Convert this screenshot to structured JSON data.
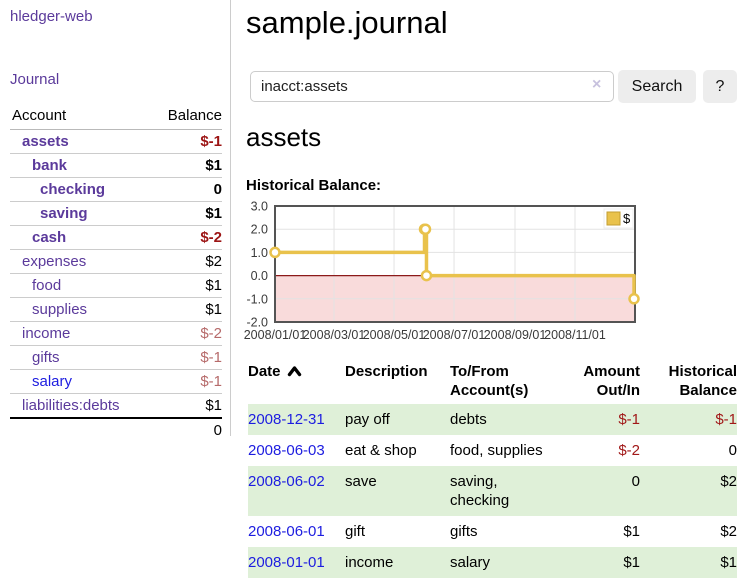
{
  "app": {
    "title": "hledger-web"
  },
  "sidebar": {
    "journal_link": "Journal",
    "accounts": {
      "headers": {
        "account": "Account",
        "balance": "Balance"
      },
      "rows": [
        {
          "account": "assets",
          "balance": "$-1"
        },
        {
          "account": "bank",
          "balance": "$1"
        },
        {
          "account": "checking",
          "balance": "0"
        },
        {
          "account": "saving",
          "balance": "$1"
        },
        {
          "account": "cash",
          "balance": "$-2"
        },
        {
          "account": "expenses",
          "balance": "$2"
        },
        {
          "account": "food",
          "balance": "$1"
        },
        {
          "account": "supplies",
          "balance": "$1"
        },
        {
          "account": "income",
          "balance": "$-2"
        },
        {
          "account": "gifts",
          "balance": "$-1"
        },
        {
          "account": "salary",
          "balance": "$-1"
        },
        {
          "account": "liabilities:debts",
          "balance": "$1"
        }
      ],
      "total": "0"
    }
  },
  "header": {
    "title": "sample.journal"
  },
  "search": {
    "value": "inacct:assets",
    "clear_icon": "×",
    "button_label": "Search",
    "help_label": "?"
  },
  "main": {
    "account_title": "assets",
    "chart_label": "Historical Balance:"
  },
  "chart_data": {
    "type": "line",
    "step": true,
    "title": "Historical Balance",
    "series": [
      {
        "name": "$",
        "color": "#e9c24c",
        "points": [
          {
            "x": "2008/01/01",
            "y": 1
          },
          {
            "x": "2008/06/01",
            "y": 2
          },
          {
            "x": "2008/06/02",
            "y": 2
          },
          {
            "x": "2008/06/03",
            "y": 0
          },
          {
            "x": "2008/12/31",
            "y": -1
          }
        ]
      }
    ],
    "x_ticks": [
      "2008/01/01",
      "2008/03/01",
      "2008/05/01",
      "2008/07/01",
      "2008/09/01",
      "2008/11/01"
    ],
    "y_ticks": [
      3.0,
      2.0,
      1.0,
      0.0,
      -1.0,
      -2.0
    ],
    "xlim": [
      "2008/01/01",
      "2009/01/01"
    ],
    "ylim": [
      -2,
      3
    ],
    "grid": true,
    "legend_position": "top-right",
    "negative_region_color": "#f9dbdb",
    "zero_line_color": "#8c1a1a",
    "grid_color": "#e3e3e3",
    "border_color": "#545454"
  },
  "transactions": {
    "headers": {
      "date": "Date",
      "description": "Description",
      "accounts": "To/From\nAccount(s)",
      "amount": "Amount\nOut/In",
      "balance": "Historical\nBalance"
    },
    "rows": [
      {
        "date": "2008-12-31",
        "description": "pay off",
        "accounts": "debts",
        "amount": "$-1",
        "balance": "$-1"
      },
      {
        "date": "2008-06-03",
        "description": "eat & shop",
        "accounts": "food, supplies",
        "amount": "$-2",
        "balance": "0"
      },
      {
        "date": "2008-06-02",
        "description": "save",
        "accounts": "saving,\nchecking",
        "amount": "0",
        "balance": "$2"
      },
      {
        "date": "2008-06-01",
        "description": "gift",
        "accounts": "gifts",
        "amount": "$1",
        "balance": "$2"
      },
      {
        "date": "2008-01-01",
        "description": "income",
        "accounts": "salary",
        "amount": "$1",
        "balance": "$1"
      }
    ]
  }
}
